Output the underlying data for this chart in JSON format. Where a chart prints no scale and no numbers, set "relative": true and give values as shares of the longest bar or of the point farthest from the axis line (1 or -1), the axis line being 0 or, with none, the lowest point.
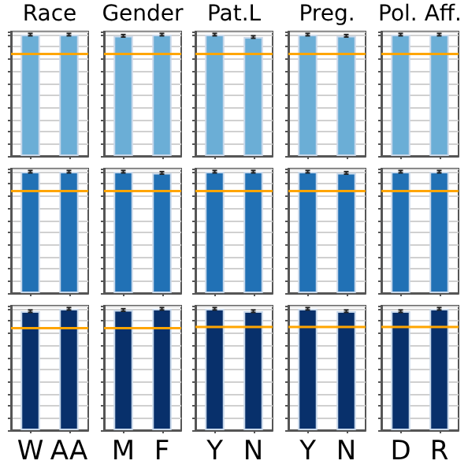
{
  "chart_data": [
    {
      "type": "bar",
      "title": "Race",
      "values": [
        1,
        1
      ],
      "errors": [
        0.01,
        0.01
      ],
      "color": "#6baed6",
      "relative": true,
      "ref_lines": [
        {
          "axis": "y",
          "value": 0.84,
          "color": "#ffa500"
        }
      ],
      "grid": "y",
      "tick_labels": false
    },
    {
      "type": "bar",
      "title": "Gender",
      "values": [
        0.99,
        1
      ],
      "errors": [
        0.01,
        0.01
      ],
      "color": "#6baed6",
      "relative": true,
      "ref_lines": [
        {
          "axis": "y",
          "value": 0.84,
          "color": "#ffa500"
        }
      ],
      "grid": "y",
      "tick_labels": false
    },
    {
      "type": "bar",
      "title": "Pat.L",
      "values": [
        1,
        0.98
      ],
      "errors": [
        0.01,
        0.01
      ],
      "color": "#6baed6",
      "relative": true,
      "ref_lines": [
        {
          "axis": "y",
          "value": 0.84,
          "color": "#ffa500"
        }
      ],
      "grid": "y",
      "tick_labels": false
    },
    {
      "type": "bar",
      "title": "Preg.",
      "values": [
        1,
        0.99
      ],
      "errors": [
        0.01,
        0.01
      ],
      "color": "#6baed6",
      "relative": true,
      "ref_lines": [
        {
          "axis": "y",
          "value": 0.84,
          "color": "#ffa500"
        }
      ],
      "grid": "y",
      "tick_labels": false
    },
    {
      "type": "bar",
      "title": "Pol. Aff.",
      "values": [
        1,
        1
      ],
      "errors": [
        0.01,
        0.01
      ],
      "color": "#6baed6",
      "relative": true,
      "ref_lines": [
        {
          "axis": "y",
          "value": 0.84,
          "color": "#ffa500"
        }
      ],
      "grid": "y",
      "tick_labels": false
    },
    {
      "type": "bar",
      "values": [
        1,
        1
      ],
      "errors": [
        0.01,
        0.01
      ],
      "color": "#2171b5",
      "relative": true,
      "ref_lines": [
        {
          "axis": "y",
          "value": 0.84,
          "color": "#ffa500"
        }
      ],
      "grid": "y",
      "tick_labels": false
    },
    {
      "type": "bar",
      "values": [
        1,
        0.99
      ],
      "errors": [
        0.01,
        0.01
      ],
      "color": "#2171b5",
      "relative": true,
      "ref_lines": [
        {
          "axis": "y",
          "value": 0.84,
          "color": "#ffa500"
        }
      ],
      "grid": "y",
      "tick_labels": false
    },
    {
      "type": "bar",
      "values": [
        1,
        1
      ],
      "errors": [
        0.01,
        0.01
      ],
      "color": "#2171b5",
      "relative": true,
      "ref_lines": [
        {
          "axis": "y",
          "value": 0.84,
          "color": "#ffa500"
        }
      ],
      "grid": "y",
      "tick_labels": false
    },
    {
      "type": "bar",
      "values": [
        1,
        0.99
      ],
      "errors": [
        0.01,
        0.01
      ],
      "color": "#2171b5",
      "relative": true,
      "ref_lines": [
        {
          "axis": "y",
          "value": 0.84,
          "color": "#ffa500"
        }
      ],
      "grid": "y",
      "tick_labels": false
    },
    {
      "type": "bar",
      "values": [
        1,
        1
      ],
      "errors": [
        0.01,
        0.01
      ],
      "color": "#2171b5",
      "relative": true,
      "ref_lines": [
        {
          "axis": "y",
          "value": 0.84,
          "color": "#ffa500"
        }
      ],
      "grid": "y",
      "tick_labels": false
    },
    {
      "type": "bar",
      "categories": [
        "W",
        "AA"
      ],
      "values": [
        0.98,
        1
      ],
      "errors": [
        0.01,
        0.01
      ],
      "color": "#08306b",
      "relative": true,
      "ref_lines": [
        {
          "axis": "y",
          "value": 0.84,
          "color": "#ffa500"
        }
      ],
      "grid": "y",
      "tick_labels": "x"
    },
    {
      "type": "bar",
      "categories": [
        "M",
        "F"
      ],
      "values": [
        0.99,
        1
      ],
      "errors": [
        0.01,
        0.01
      ],
      "color": "#08306b",
      "relative": true,
      "ref_lines": [
        {
          "axis": "y",
          "value": 0.84,
          "color": "#ffa500"
        }
      ],
      "grid": "y",
      "tick_labels": "x"
    },
    {
      "type": "bar",
      "categories": [
        "Y",
        "N"
      ],
      "values": [
        1,
        0.98
      ],
      "errors": [
        0.01,
        0.01
      ],
      "color": "#08306b",
      "relative": true,
      "ref_lines": [
        {
          "axis": "y",
          "value": 0.85,
          "color": "#ffa500"
        }
      ],
      "grid": "y",
      "tick_labels": "x"
    },
    {
      "type": "bar",
      "categories": [
        "Y",
        "N"
      ],
      "values": [
        1,
        0.98
      ],
      "errors": [
        0.01,
        0.01
      ],
      "color": "#08306b",
      "relative": true,
      "ref_lines": [
        {
          "axis": "y",
          "value": 0.85,
          "color": "#ffa500"
        }
      ],
      "grid": "y",
      "tick_labels": "x"
    },
    {
      "type": "bar",
      "categories": [
        "D",
        "R"
      ],
      "values": [
        0.98,
        1
      ],
      "errors": [
        0.01,
        0.01
      ],
      "color": "#08306b",
      "relative": true,
      "ref_lines": [
        {
          "axis": "y",
          "value": 0.85,
          "color": "#ffa500"
        }
      ],
      "grid": "y",
      "tick_labels": "x"
    }
  ]
}
